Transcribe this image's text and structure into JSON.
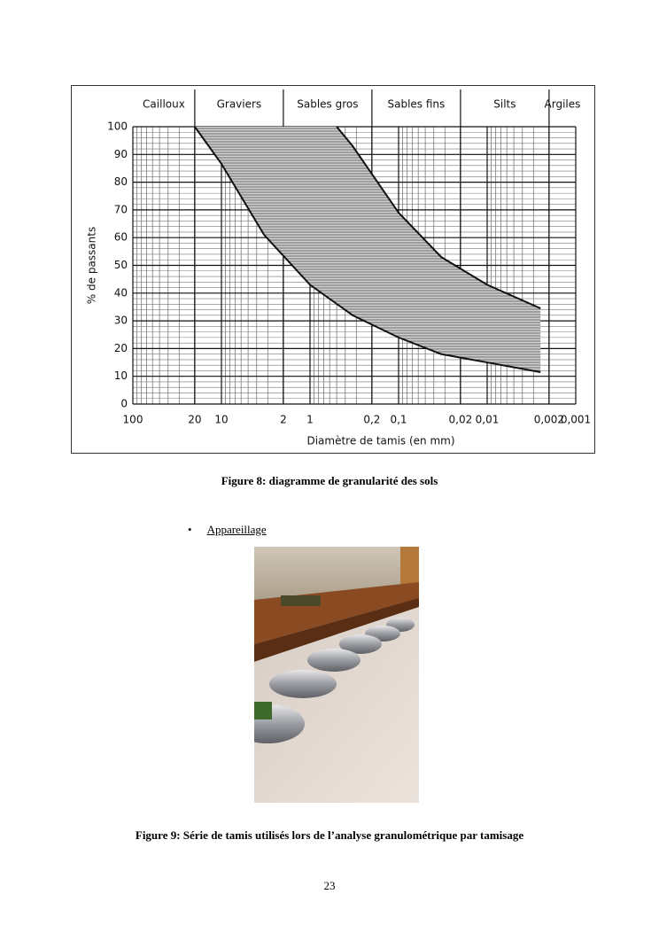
{
  "chart_data": {
    "type": "envelope",
    "y_label": "% de passants",
    "x_label": "Diamètre de tamis (en mm)",
    "zones": [
      {
        "name": "Cailloux",
        "from": 100,
        "to": 20
      },
      {
        "name": "Graviers",
        "from": 20,
        "to": 2
      },
      {
        "name": "Sables gros",
        "from": 2,
        "to": 0.2
      },
      {
        "name": "Sables fins",
        "from": 0.2,
        "to": 0.02
      },
      {
        "name": "Silts",
        "from": 0.02,
        "to": 0.002
      },
      {
        "name": "Argiles",
        "from": 0.002,
        "to": 0.001
      }
    ],
    "x_scale": "log",
    "xlim": [
      100,
      0.001
    ],
    "xticks": [
      100,
      20,
      10,
      2,
      1,
      {
        "value": 0.2,
        "label": "0,2"
      },
      {
        "value": 0.1,
        "label": "0,1"
      },
      {
        "value": 0.02,
        "label": "0,02"
      },
      {
        "value": 0.01,
        "label": "0,01"
      },
      {
        "value": 0.002,
        "label": "0,002"
      },
      {
        "value": 0.001,
        "label": "0,001"
      }
    ],
    "ylim": [
      0,
      100
    ],
    "yticks": [
      0,
      10,
      20,
      30,
      40,
      50,
      60,
      70,
      80,
      90,
      100
    ],
    "grid": true,
    "fill_color": "#9a9a9a",
    "series": [
      {
        "color": "#111111",
        "x": [
          20,
          10,
          3.3,
          1,
          0.33,
          0.1,
          0.033,
          0.01,
          0.0025
        ],
        "values": [
          100,
          86.6,
          61,
          43,
          32,
          24,
          18,
          15,
          11.5
        ]
      },
      {
        "color": "#111111",
        "x": [
          0.5,
          0.33,
          0.1,
          0.033,
          0.01,
          0.0025
        ],
        "values": [
          100,
          93,
          69,
          53,
          43,
          34.5
        ]
      }
    ]
  },
  "figure_8_caption": "Figure 8: diagramme de granularité des sols",
  "bullet": "Appareillage",
  "figure_9_caption": "Figure 9: Série de tamis utilisés lors de l’analyse granulométrique par  tamisage",
  "page_number": "23"
}
